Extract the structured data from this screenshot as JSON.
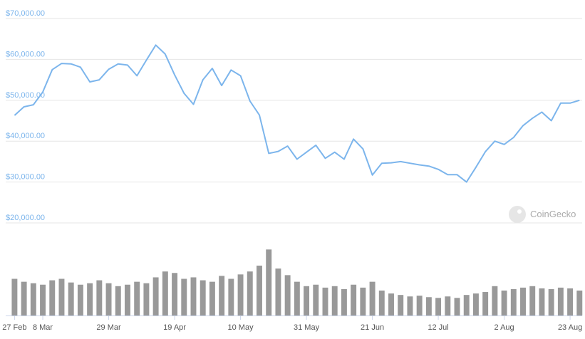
{
  "chart_data": {
    "type": "line",
    "categories": [
      "27 Feb",
      null,
      null,
      "8 Mar",
      null,
      null,
      null,
      null,
      null,
      null,
      "29 Mar",
      null,
      null,
      null,
      null,
      null,
      null,
      "19 Apr",
      null,
      null,
      null,
      null,
      null,
      null,
      "10 May",
      null,
      null,
      null,
      null,
      null,
      null,
      "31 May",
      null,
      null,
      null,
      null,
      null,
      null,
      "21 Jun",
      null,
      null,
      null,
      null,
      null,
      null,
      "12 Jul",
      null,
      null,
      null,
      null,
      null,
      null,
      "2 Aug",
      null,
      null,
      null,
      null,
      null,
      null,
      "23 Aug",
      null
    ],
    "series": [
      {
        "color": "#7cb5ec",
        "values": [
          46300,
          48400,
          48900,
          52000,
          57500,
          59000,
          58900,
          58100,
          54500,
          55000,
          57600,
          58900,
          58600,
          56000,
          59800,
          63500,
          61300,
          56200,
          51700,
          49000,
          55000,
          57800,
          53600,
          57400,
          56000,
          49800,
          46400,
          37000,
          37500,
          38800,
          35600,
          37300,
          39000,
          35800,
          37300,
          35600,
          40500,
          38100,
          31700,
          34600,
          34700,
          35000,
          34600,
          34200,
          33900,
          33100,
          31800,
          31800,
          30000,
          33600,
          37400,
          40000,
          39200,
          40900,
          43800,
          45600,
          47100,
          45000,
          49300,
          49300,
          50000
        ]
      },
      {
        "type": "bar",
        "axis": "y2",
        "color": "#999999",
        "values": [
          50,
          46,
          44,
          42,
          48,
          50,
          45,
          42,
          44,
          48,
          44,
          40,
          42,
          46,
          44,
          52,
          60,
          58,
          50,
          52,
          48,
          46,
          54,
          50,
          56,
          60,
          68,
          90,
          64,
          55,
          46,
          40,
          42,
          38,
          40,
          36,
          42,
          38,
          46,
          34,
          30,
          28,
          26,
          27,
          25,
          24,
          26,
          24,
          28,
          30,
          32,
          40,
          34,
          36,
          38,
          40,
          37,
          36,
          38,
          37,
          34
        ]
      }
    ],
    "ylim": [
      20000,
      70000
    ],
    "yticks": [
      {
        "value": 20000,
        "label": "$20,000.00"
      },
      {
        "value": 30000,
        "label": "$30,000.00"
      },
      {
        "value": 40000,
        "label": "$40,000.00"
      },
      {
        "value": 50000,
        "label": "$50,000.00"
      },
      {
        "value": 60000,
        "label": "$60,000.00"
      },
      {
        "value": 70000,
        "label": "$70,000.00"
      }
    ],
    "y2lim": [
      0,
      100
    ],
    "grid": true,
    "watermark": "CoinGecko"
  }
}
